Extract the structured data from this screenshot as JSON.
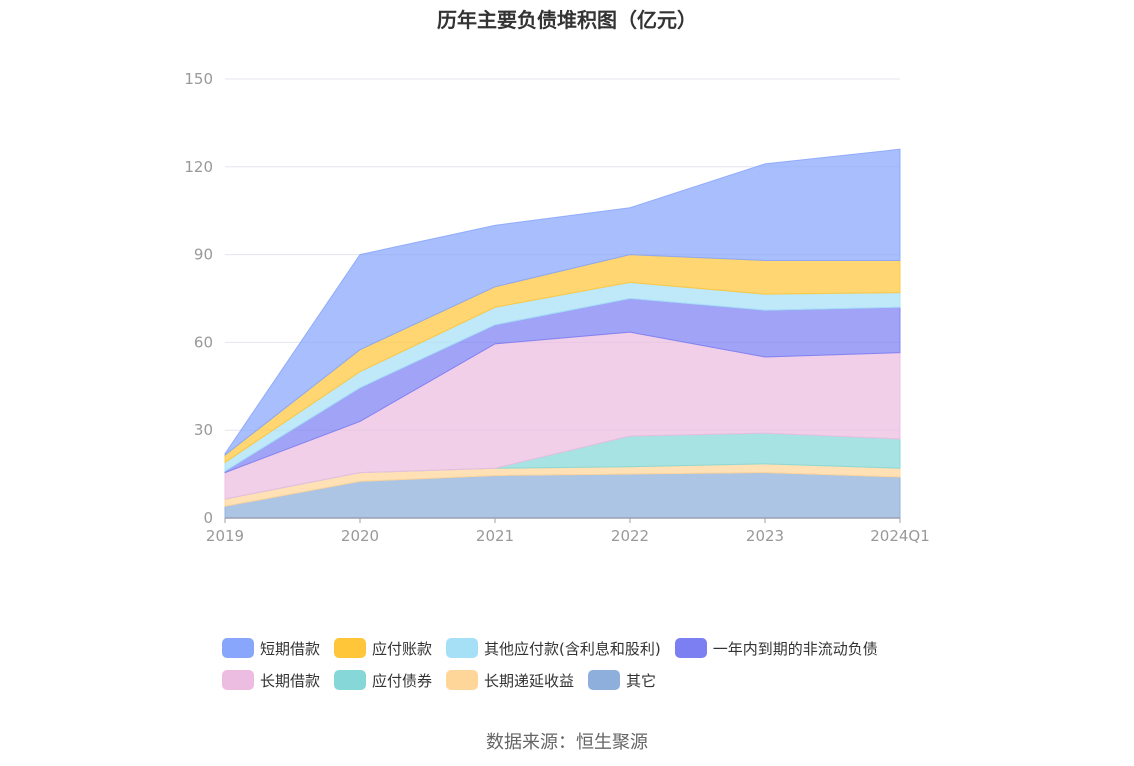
{
  "source": "数据来源：恒生聚源",
  "chart_data": {
    "type": "area",
    "stacked": true,
    "title": "历年主要负债堆积图（亿元）",
    "categories": [
      "2019",
      "2020",
      "2021",
      "2022",
      "2023",
      "2024Q1"
    ],
    "ylim": [
      0,
      150
    ],
    "yticks": [
      0,
      30,
      60,
      90,
      120,
      150
    ],
    "grid": true,
    "legend_position": "bottom",
    "series": [
      {
        "name": "其它",
        "color": "#8eaedb",
        "values": [
          4.0,
          12.5,
          14.5,
          15.0,
          15.5,
          14.0
        ]
      },
      {
        "name": "长期递延收益",
        "color": "#ffd699",
        "values": [
          2.5,
          3.0,
          2.5,
          2.5,
          3.0,
          3.0
        ]
      },
      {
        "name": "应付债券",
        "color": "#86d8d8",
        "values": [
          0,
          0,
          0,
          10.5,
          10.5,
          10.0
        ]
      },
      {
        "name": "长期借款",
        "color": "#ecbde0",
        "values": [
          9.0,
          17.5,
          42.5,
          35.5,
          26.0,
          29.5
        ]
      },
      {
        "name": "一年内到期的非流动负债",
        "color": "#7b7ff2",
        "values": [
          0.5,
          11.5,
          6.5,
          11.5,
          16.0,
          15.5
        ]
      },
      {
        "name": "其他应付款(含利息和股利)",
        "color": "#a6e0f7",
        "values": [
          3.0,
          5.5,
          6.0,
          5.5,
          5.5,
          5.0
        ]
      },
      {
        "name": "应付账款",
        "color": "#ffc63a",
        "values": [
          2.5,
          7.5,
          7.0,
          9.5,
          11.5,
          11.0
        ]
      },
      {
        "name": "短期借款",
        "color": "#88a6fc",
        "values": [
          0.5,
          32.5,
          21.0,
          16.0,
          33.0,
          38.0
        ]
      }
    ],
    "legend_rows": [
      [
        "短期借款",
        "应付账款",
        "其他应付款(含利息和股利)",
        "一年内到期的非流动负债"
      ],
      [
        "长期借款",
        "应付债券",
        "长期递延收益",
        "其它"
      ]
    ]
  }
}
